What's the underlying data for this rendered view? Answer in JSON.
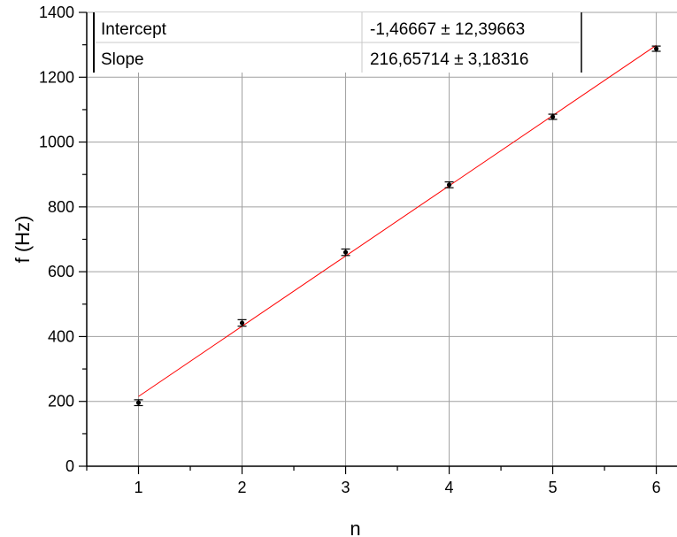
{
  "chart_data": {
    "type": "scatter",
    "title": "",
    "xlabel": "n",
    "ylabel": "f (Hz)",
    "xlim": [
      0.5,
      6.2
    ],
    "ylim": [
      0,
      1400
    ],
    "x_ticks": [
      1,
      2,
      3,
      4,
      5,
      6
    ],
    "y_ticks": [
      0,
      200,
      400,
      600,
      800,
      1000,
      1200,
      1400
    ],
    "x_tick_labels": [
      "1",
      "2",
      "3",
      "4",
      "5",
      "6"
    ],
    "y_tick_labels": [
      "0",
      "200",
      "400",
      "600",
      "800",
      "1000",
      "1200",
      "1400"
    ],
    "grid": true,
    "series": [
      {
        "x": [
          1,
          2,
          3,
          4,
          5,
          6
        ],
        "y": [
          196,
          442,
          660,
          868,
          1078,
          1288
        ],
        "yerr": [
          9,
          10,
          10,
          9,
          8,
          8
        ],
        "color": "#000000"
      }
    ],
    "fit": {
      "intercept": -1.46667,
      "slope": 216.65714,
      "x_range": [
        1,
        6
      ],
      "color": "#ff0000"
    },
    "fit_table": {
      "rows": [
        {
          "label": "Intercept",
          "value": "-1,46667 ± 12,39663"
        },
        {
          "label": "Slope",
          "value": "216,65714 ± 3,18316"
        }
      ]
    }
  }
}
